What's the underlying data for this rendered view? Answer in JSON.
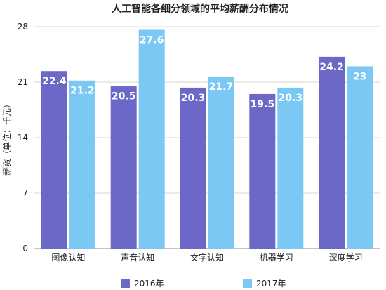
{
  "chart_data": {
    "type": "bar",
    "title": "人工智能各细分领域的平均薪酬分布情况",
    "ylabel": "薪资（单位：千元）",
    "xlabel": "",
    "ylim": [
      0,
      28
    ],
    "yticks": [
      0,
      7,
      14,
      21,
      28
    ],
    "grid": true,
    "legend_position": "bottom",
    "categories": [
      "图像认知",
      "声音认知",
      "文字认知",
      "机器学习",
      "深度学习"
    ],
    "series": [
      {
        "name": "2016年",
        "color": "#6b68c8",
        "values": [
          22.4,
          20.5,
          20.3,
          19.5,
          24.2
        ]
      },
      {
        "name": "2017年",
        "color": "#7cc8f4",
        "values": [
          21.2,
          27.6,
          21.7,
          20.3,
          23
        ]
      }
    ]
  }
}
